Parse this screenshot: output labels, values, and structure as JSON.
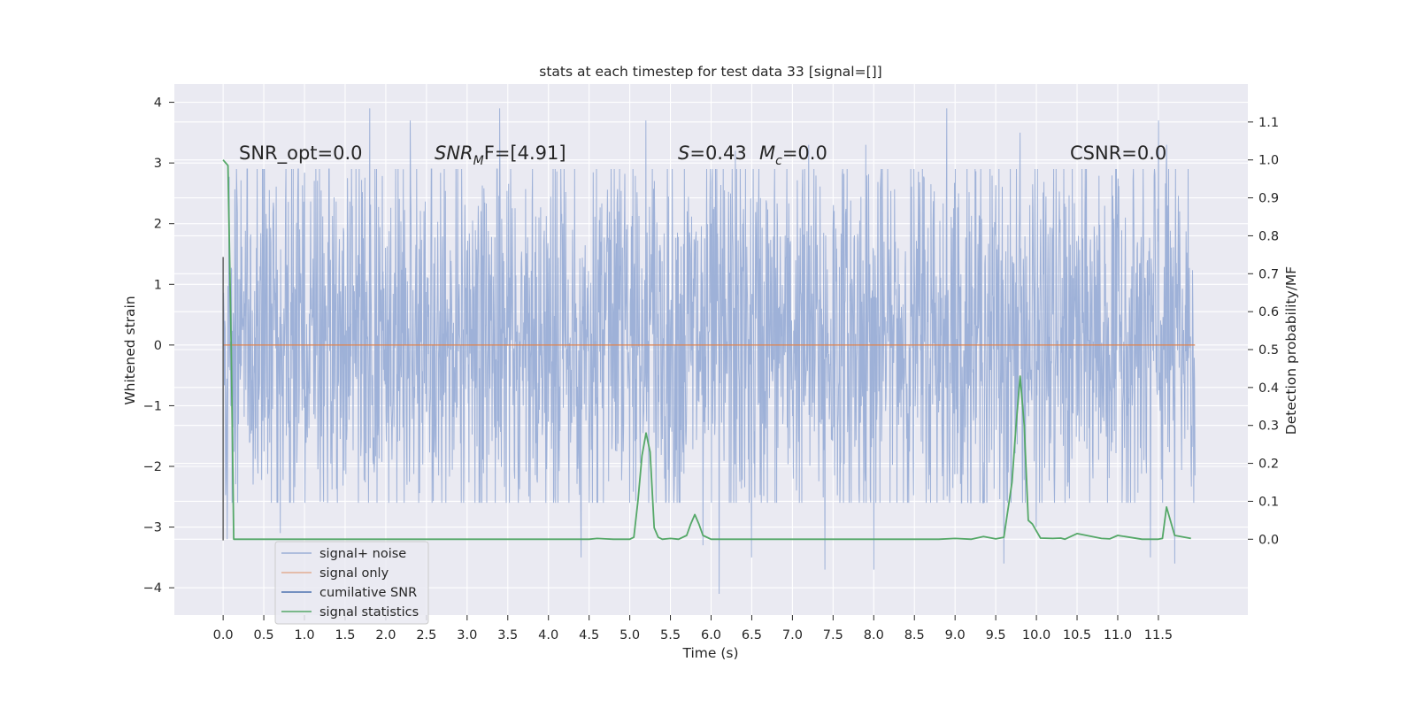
{
  "chart_data": {
    "type": "line",
    "title": "stats at each timestep for test data 33 [signal=[]]",
    "xlabel": "Time (s)",
    "ylabel_left": "Whitened strain",
    "ylabel_right": "Detection probability/MF",
    "xlim": [
      -0.6,
      12.6
    ],
    "ylim_left": [
      -4.45,
      4.3
    ],
    "ylim_right": [
      -0.2,
      1.2
    ],
    "x_ticks": [
      "0.0",
      "0.5",
      "1.0",
      "1.5",
      "2.0",
      "2.5",
      "3.0",
      "3.5",
      "4.0",
      "4.5",
      "5.0",
      "5.5",
      "6.0",
      "6.5",
      "7.0",
      "7.5",
      "8.0",
      "8.5",
      "9.0",
      "9.5",
      "10.0",
      "10.5",
      "11.0",
      "11.5"
    ],
    "y_ticks_left": [
      "4",
      "3",
      "2",
      "1",
      "0",
      "−1",
      "−2",
      "−3",
      "−4"
    ],
    "y_ticks_right": [
      "1.1",
      "1.0",
      "0.9",
      "0.8",
      "0.7",
      "0.6",
      "0.5",
      "0.4",
      "0.3",
      "0.2",
      "0.1",
      "0.0"
    ],
    "grid": true,
    "legend_position": "lower-left",
    "annotations": [
      {
        "id": "snr_opt",
        "text": "SNR_opt=0.0"
      },
      {
        "id": "snr_mf",
        "sym": "SNR",
        "sub": "M",
        "rest": "F=[4.91]"
      },
      {
        "id": "s_val",
        "sym": "S",
        "rest": "=0.43"
      },
      {
        "id": "mc_val",
        "sym": "M",
        "sub": "c",
        "rest": "=0.0"
      },
      {
        "id": "csnr",
        "text": "CSNR=0.0"
      }
    ],
    "series": [
      {
        "name": "signal+ noise",
        "color": "#9aaed6",
        "axis": "left",
        "duration": 11.95,
        "envelope_upper": 1.8,
        "envelope_lower": -1.6,
        "peaks": [
          [
            1.8,
            3.9
          ],
          [
            2.3,
            3.7
          ],
          [
            3.4,
            3.9
          ],
          [
            5.2,
            3.7
          ],
          [
            6.3,
            3.2
          ],
          [
            7.2,
            3.3
          ],
          [
            7.9,
            3.3
          ],
          [
            8.9,
            3.9
          ],
          [
            9.8,
            3.5
          ],
          [
            11.5,
            3.7
          ],
          [
            11.6,
            3.3
          ]
        ],
        "troughs": [
          [
            0.05,
            -3.2
          ],
          [
            0.7,
            -3.1
          ],
          [
            4.4,
            -3.5
          ],
          [
            5.9,
            -3.3
          ],
          [
            6.1,
            -4.1
          ],
          [
            6.5,
            -3.5
          ],
          [
            7.4,
            -3.7
          ],
          [
            8.0,
            -3.7
          ],
          [
            9.6,
            -3.6
          ],
          [
            10.0,
            -3.0
          ],
          [
            11.4,
            -3.5
          ],
          [
            11.7,
            -3.6
          ]
        ]
      },
      {
        "name": "signal only",
        "color": "#dd8452",
        "axis": "left",
        "x": [
          0.0,
          11.95
        ],
        "y": [
          0.0,
          0.0
        ]
      },
      {
        "name": "cumilative SNR",
        "color": "#4c72b0",
        "axis": "left",
        "x": [
          0.0,
          0.0
        ],
        "y": [
          1.45,
          -3.22
        ]
      },
      {
        "name": "signal statistics",
        "color": "#55a868",
        "axis": "right",
        "x": [
          0.0,
          0.06,
          0.1,
          0.13,
          0.16,
          0.6,
          1.0,
          2.0,
          3.0,
          4.0,
          4.5,
          4.6,
          4.7,
          4.8,
          5.0,
          5.05,
          5.1,
          5.15,
          5.2,
          5.25,
          5.3,
          5.35,
          5.4,
          5.5,
          5.6,
          5.7,
          5.75,
          5.8,
          5.85,
          5.9,
          6.0,
          7.0,
          8.0,
          8.8,
          9.0,
          9.2,
          9.35,
          9.5,
          9.6,
          9.7,
          9.75,
          9.8,
          9.85,
          9.9,
          9.95,
          10.05,
          10.2,
          10.3,
          10.35,
          10.5,
          10.8,
          10.9,
          11.0,
          11.3,
          11.5,
          11.55,
          11.6,
          11.7,
          11.9
        ],
        "y": [
          1.0,
          0.985,
          0.5,
          0.0,
          0.0,
          0.0,
          0.0,
          0.0,
          0.0,
          0.0,
          0.0,
          0.002,
          0.001,
          0.0,
          0.0,
          0.005,
          0.1,
          0.22,
          0.28,
          0.23,
          0.03,
          0.005,
          0.0,
          0.002,
          0.0,
          0.01,
          0.04,
          0.065,
          0.04,
          0.01,
          0.0,
          0.0,
          0.0,
          0.0,
          0.002,
          0.0,
          0.007,
          0.001,
          0.005,
          0.15,
          0.3,
          0.43,
          0.3,
          0.05,
          0.04,
          0.003,
          0.002,
          0.003,
          0.0,
          0.015,
          0.002,
          0.001,
          0.01,
          0.0,
          0.0,
          0.002,
          0.085,
          0.01,
          0.002
        ]
      }
    ]
  }
}
